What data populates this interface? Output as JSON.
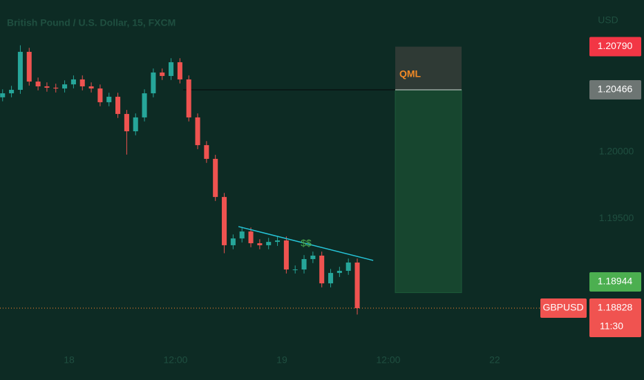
{
  "chart_data": {
    "type": "candlestick",
    "title": "British Pound / U.S. Dollar, 15, FXCM",
    "currency": "USD",
    "up_color": "#26a69a",
    "down_color": "#ef5350",
    "x": [
      -30,
      -26,
      -22,
      -18,
      -14,
      -10,
      -6,
      -2,
      2,
      6,
      10,
      14,
      18,
      22,
      26,
      30,
      34,
      38,
      42,
      46,
      50,
      54,
      58,
      62,
      66,
      70,
      74,
      78,
      82,
      86,
      90,
      94,
      98,
      102,
      106,
      110,
      114,
      118,
      122,
      126,
      130
    ],
    "open": [
      1.2041,
      1.2044,
      1.20466,
      1.20751,
      1.20528,
      1.20492,
      1.20482,
      1.20476,
      1.20507,
      1.20544,
      1.20492,
      1.20476,
      1.20373,
      1.20414,
      1.20285,
      1.20155,
      1.20259,
      1.2044,
      1.20596,
      1.2057,
      1.20673,
      1.20544,
      1.20259,
      1.20051,
      1.19948,
      1.19662,
      1.193,
      1.19351,
      1.19403,
      1.19315,
      1.193,
      1.19325,
      1.19336,
      1.19118,
      1.19118,
      1.19196,
      1.19222,
      1.19014,
      1.19092,
      1.19108,
      1.1917
    ],
    "high": [
      1.2047,
      1.20496,
      1.208,
      1.20781,
      1.20558,
      1.20522,
      1.20512,
      1.20537,
      1.20574,
      1.20574,
      1.20522,
      1.20506,
      1.20444,
      1.20444,
      1.20315,
      1.20289,
      1.2047,
      1.20626,
      1.20626,
      1.20703,
      1.20703,
      1.20574,
      1.20289,
      1.20081,
      1.19978,
      1.19692,
      1.19381,
      1.19433,
      1.19433,
      1.19345,
      1.19355,
      1.19366,
      1.19366,
      1.19148,
      1.19226,
      1.19252,
      1.19252,
      1.19122,
      1.19138,
      1.192,
      1.192
    ],
    "low": [
      1.2038,
      1.2041,
      1.20436,
      1.20498,
      1.20462,
      1.20452,
      1.20446,
      1.20446,
      1.20477,
      1.20462,
      1.20446,
      1.20343,
      1.20343,
      1.20255,
      1.1998,
      1.20125,
      1.20229,
      1.2041,
      1.2054,
      1.2054,
      1.20514,
      1.20229,
      1.20021,
      1.19918,
      1.19632,
      1.1924,
      1.1927,
      1.19321,
      1.19285,
      1.1927,
      1.1927,
      1.19295,
      1.19088,
      1.19088,
      1.19088,
      1.19166,
      1.18984,
      1.18984,
      1.19062,
      1.19078,
      1.1878
    ],
    "close": [
      1.2044,
      1.20466,
      1.20751,
      1.20528,
      1.20492,
      1.20482,
      1.20476,
      1.20507,
      1.20544,
      1.20492,
      1.20476,
      1.20373,
      1.20414,
      1.20285,
      1.20155,
      1.20259,
      1.2044,
      1.20596,
      1.2057,
      1.20673,
      1.20544,
      1.20259,
      1.20051,
      1.19948,
      1.19662,
      1.193,
      1.19351,
      1.19403,
      1.19315,
      1.193,
      1.19325,
      1.19336,
      1.19118,
      1.19118,
      1.19196,
      1.19222,
      1.19014,
      1.19092,
      1.19108,
      1.1917,
      1.18828
    ],
    "xlim": [
      -31.17,
      233.8
    ],
    "xticks": [
      {
        "value": 0,
        "label": "18"
      },
      {
        "value": 48,
        "label": "12:00"
      },
      {
        "value": 96,
        "label": "19"
      },
      {
        "value": 144,
        "label": "12:00"
      },
      {
        "value": 192,
        "label": "22"
      }
    ],
    "ylim": [
      1.18548,
      1.2114
    ],
    "yticks": [
      {
        "value": 1.195,
        "label": "1.19500"
      },
      {
        "value": 1.2,
        "label": "1.20000"
      }
    ],
    "qml": {
      "label": "QML",
      "top": {
        "value": 1.2079,
        "label": "1.20790"
      },
      "line": {
        "value": 1.20466,
        "label": "1.20466"
      },
      "target": {
        "value": 1.18944,
        "label": "1.18944"
      }
    },
    "trendline": {
      "x": [
        76.4,
        137.2
      ],
      "y": [
        1.1944,
        1.19186
      ],
      "label": "$$",
      "color": "#26c6da"
    },
    "last": {
      "symbol": "GBPUSD",
      "price": {
        "value": 1.18828,
        "label": "1.18828"
      },
      "countdown": "11:30"
    }
  }
}
